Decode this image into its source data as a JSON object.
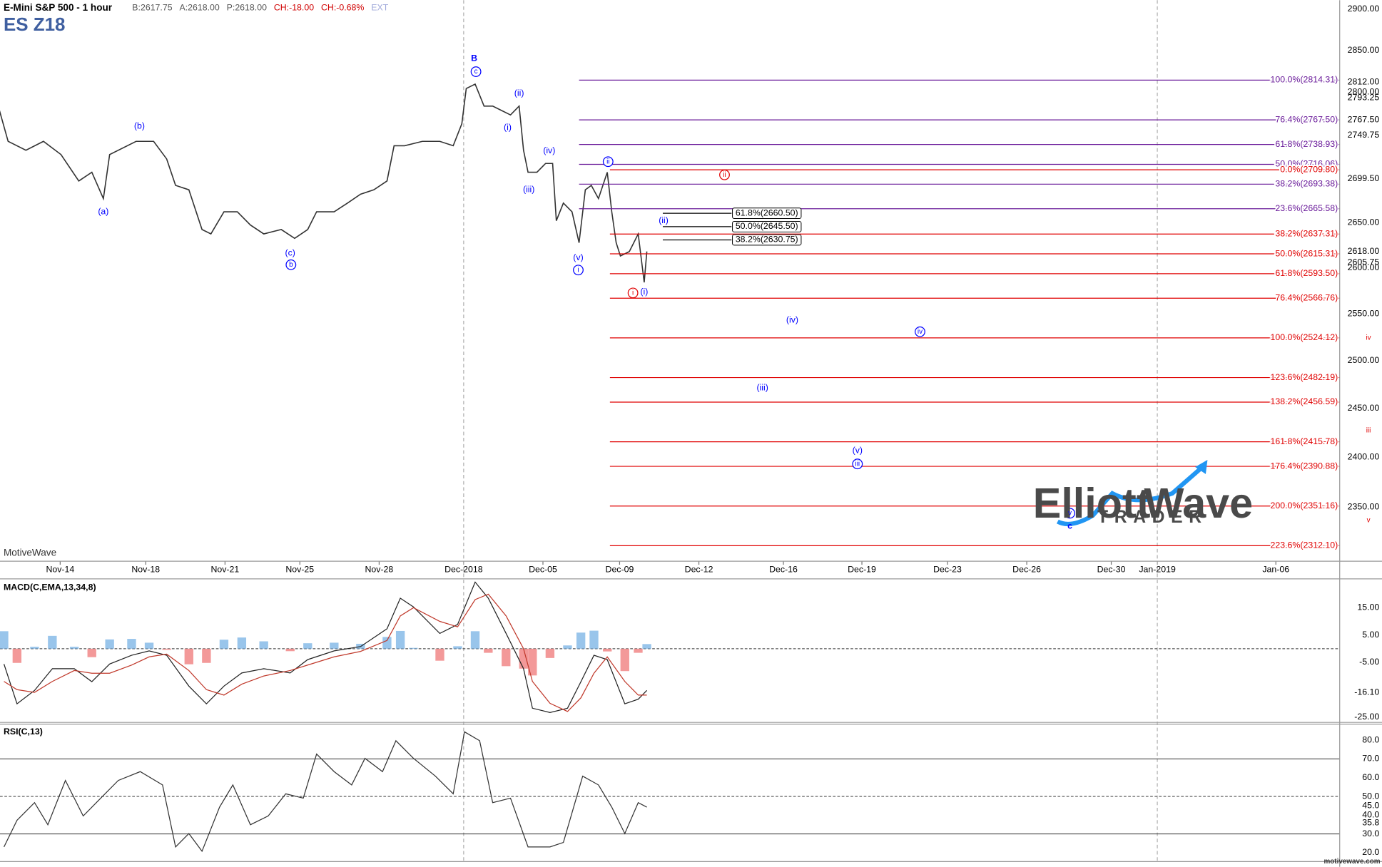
{
  "chart_data": [
    {
      "type": "line",
      "title": "E-Mini S&P 500 - 1 hour",
      "subtitle": "ES Z18",
      "quote": [
        {
          "text": "B:2617.75",
          "color": "#555555"
        },
        {
          "text": "A:2618.00",
          "color": "#555555"
        },
        {
          "text": "P:2618.00",
          "color": "#555555"
        },
        {
          "text": "CH:-18.00",
          "color": "#d00000"
        },
        {
          "text": "CH:-0.68%",
          "color": "#d00000"
        },
        {
          "text": "EXT",
          "color": "#9fa8da"
        }
      ],
      "watermark": "MotiveWave",
      "log_scale": true,
      "xlim": [
        -2.3,
        48.9
      ],
      "ylim": [
        2297,
        2911
      ],
      "xticks": [
        {
          "value": 0,
          "label": "Nov-14"
        },
        {
          "value": 3.27,
          "label": "Nov-18"
        },
        {
          "value": 6.3,
          "label": "Nov-21"
        },
        {
          "value": 9.16,
          "label": "Nov-25"
        },
        {
          "value": 12.19,
          "label": "Nov-28"
        },
        {
          "value": 15.42,
          "label": "Dec-2018"
        },
        {
          "value": 18.45,
          "label": "Dec-05"
        },
        {
          "value": 21.38,
          "label": "Dec-09"
        },
        {
          "value": 24.41,
          "label": "Dec-12"
        },
        {
          "value": 27.64,
          "label": "Dec-16"
        },
        {
          "value": 30.64,
          "label": "Dec-19"
        },
        {
          "value": 33.91,
          "label": "Dec-23"
        },
        {
          "value": 36.94,
          "label": "Dec-26"
        },
        {
          "value": 40.17,
          "label": "Dec-30"
        },
        {
          "value": 41.93,
          "label": "Jan-2019"
        },
        {
          "value": 46.46,
          "label": "Jan-06"
        }
      ],
      "yticks": [
        {
          "value": 2900,
          "label": "2900.00"
        },
        {
          "value": 2850,
          "label": "2850.00"
        },
        {
          "value": 2800,
          "label": "2800.00"
        },
        {
          "value": 2650,
          "label": "2650.00"
        },
        {
          "value": 2600,
          "label": "2600.00"
        },
        {
          "value": 2550,
          "label": "2550.00"
        },
        {
          "value": 2500,
          "label": "2500.00"
        },
        {
          "value": 2450,
          "label": "2450.00"
        },
        {
          "value": 2400,
          "label": "2400.00"
        },
        {
          "value": 2350,
          "label": "2350.00"
        }
      ],
      "series": [
        {
          "color": "#333333",
          "x": [
            -2.32,
            -1.99,
            -1.31,
            -0.64,
            0.03,
            0.71,
            1.21,
            1.65,
            1.89,
            2.9,
            3.57,
            4.07,
            4.41,
            4.92,
            5.42,
            5.76,
            6.26,
            6.77,
            7.27,
            7.78,
            8.45,
            8.96,
            9.46,
            9.8,
            10.47,
            10.98,
            11.48,
            11.99,
            12.49,
            12.76,
            13.16,
            13.84,
            14.51,
            15.02,
            15.35,
            15.52,
            15.86,
            16.2,
            16.53,
            16.87,
            17.21,
            17.54,
            17.71,
            17.88,
            18.22,
            18.55,
            18.82,
            18.96,
            19.23,
            19.56,
            19.83,
            20.07,
            20.3,
            20.57,
            20.91,
            21.08,
            21.25,
            21.41,
            21.75,
            22.09,
            22.32,
            22.42
          ],
          "values": [
            2778.5,
            2742.5,
            2732.3,
            2742.5,
            2727.3,
            2697.0,
            2707.0,
            2677.0,
            2727.3,
            2742.5,
            2742.5,
            2722.2,
            2692.0,
            2687.0,
            2642.3,
            2637.4,
            2662.1,
            2662.1,
            2647.3,
            2637.4,
            2642.3,
            2632.5,
            2642.3,
            2662.1,
            2662.1,
            2672.0,
            2682.0,
            2687.0,
            2697.0,
            2737.4,
            2737.4,
            2742.5,
            2742.5,
            2737.4,
            2763.0,
            2804.4,
            2809.6,
            2783.6,
            2783.6,
            2778.5,
            2773.3,
            2783.6,
            2732.3,
            2707.0,
            2707.0,
            2717.1,
            2717.1,
            2652.2,
            2672.0,
            2662.1,
            2627.6,
            2687.0,
            2692.0,
            2677.0,
            2707.0,
            2662.1,
            2627.6,
            2613.0,
            2617.8,
            2637.4,
            2584.0,
            2618.0
          ]
        }
      ],
      "fib_levels": [
        {
          "label": "100.0%(2814.31)",
          "value": 2814.31,
          "color": "#6a1b9a"
        },
        {
          "label": "76.4%(2767.50)",
          "value": 2767.5,
          "color": "#6a1b9a"
        },
        {
          "label": "61.8%(2738.93)",
          "value": 2738.93,
          "color": "#6a1b9a"
        },
        {
          "label": "50.0%(2716.06)",
          "value": 2716.06,
          "color": "#6a1b9a"
        },
        {
          "label": "38.2%(2693.38)",
          "value": 2693.38,
          "color": "#6a1b9a"
        },
        {
          "label": "23.6%(2665.58)",
          "value": 2665.58,
          "color": "#6a1b9a"
        },
        {
          "label": "0.0%(2709.80)",
          "value": 2709.8,
          "color": "#e00000"
        },
        {
          "label": "38.2%(2637.31)",
          "value": 2637.31,
          "color": "#e00000"
        },
        {
          "label": "50.0%(2615.31)",
          "value": 2615.31,
          "color": "#e00000"
        },
        {
          "label": "61.8%(2593.50)",
          "value": 2593.5,
          "color": "#e00000"
        },
        {
          "label": "76.4%(2566.76)",
          "value": 2566.76,
          "color": "#e00000"
        },
        {
          "label": "100.0%(2524.12)",
          "value": 2524.12,
          "color": "#e00000"
        },
        {
          "label": "123.6%(2482.19)",
          "value": 2482.19,
          "color": "#e00000"
        },
        {
          "label": "138.2%(2456.59)",
          "value": 2456.59,
          "color": "#e00000"
        },
        {
          "label": "161.8%(2415.78)",
          "value": 2415.78,
          "color": "#e00000"
        },
        {
          "label": "176.4%(2390.88)",
          "value": 2390.88,
          "color": "#e00000"
        },
        {
          "label": "200.0%(2351.16)",
          "value": 2351.16,
          "color": "#e00000"
        },
        {
          "label": "223.6%(2312.10)",
          "value": 2312.1,
          "color": "#e00000"
        },
        {
          "label": "61.8%(2660.50)",
          "value": 2660.5,
          "color": "#000000"
        },
        {
          "label": "50.0%(2645.50)",
          "value": 2645.5,
          "color": "#000000"
        },
        {
          "label": "38.2%(2630.75)",
          "value": 2630.75,
          "color": "#000000"
        }
      ],
      "price_markers": [
        {
          "value": 2812,
          "label": "2812.00",
          "color": "#4caf50"
        },
        {
          "value": 2793.25,
          "label": "2793.25",
          "color": "#ffffff"
        },
        {
          "value": 2767.5,
          "label": "2767.50",
          "color": "#f0625a"
        },
        {
          "value": 2749.75,
          "label": "2749.75",
          "color": "#7fb6e6"
        },
        {
          "value": 2699.5,
          "label": "2699.50",
          "color": "#ffffff"
        },
        {
          "value": 2618,
          "label": "2618.00",
          "color": "#ffffff"
        },
        {
          "value": 2605.75,
          "label": "2605.75",
          "color": "#ffffff"
        }
      ],
      "annotations": [
        {
          "text": "B",
          "x": 15.82,
          "y": 2840.2,
          "color": "#0000ff",
          "bold": true
        },
        {
          "text": "c",
          "x": 15.89,
          "y": 2824.4,
          "color": "#0000ff",
          "circled": true
        },
        {
          "text": "(b)",
          "x": 3.03,
          "y": 2760.1,
          "color": "#0000ff"
        },
        {
          "text": "(a)",
          "x": 1.65,
          "y": 2662.1,
          "color": "#0000ff"
        },
        {
          "text": "(c)",
          "x": 8.79,
          "y": 2615.9,
          "color": "#0000ff"
        },
        {
          "text": "b",
          "x": 8.82,
          "y": 2603.3,
          "color": "#0000ff",
          "circled": true
        },
        {
          "text": "(ii)",
          "x": 17.54,
          "y": 2798.2,
          "color": "#0000ff"
        },
        {
          "text": "(i)",
          "x": 17.1,
          "y": 2758.2,
          "color": "#0000ff"
        },
        {
          "text": "(iv)",
          "x": 18.69,
          "y": 2731.3,
          "color": "#0000ff"
        },
        {
          "text": "(iii)",
          "x": 17.91,
          "y": 2687.0,
          "color": "#0000ff"
        },
        {
          "text": "ii",
          "x": 20.94,
          "y": 2719.1,
          "color": "#0000ff",
          "circled": true
        },
        {
          "text": "(v)",
          "x": 19.8,
          "y": 2611.0,
          "color": "#0000ff"
        },
        {
          "text": "i",
          "x": 19.8,
          "y": 2597.5,
          "color": "#0000ff",
          "circled": true
        },
        {
          "text": "(ii)",
          "x": 23.06,
          "y": 2652.2,
          "color": "#0000ff"
        },
        {
          "text": "(i)",
          "x": 22.32,
          "y": 2573.4,
          "color": "#0000ff"
        },
        {
          "text": "ii",
          "x": 25.39,
          "y": 2704.0,
          "color": "#e00000",
          "circled": true
        },
        {
          "text": "i",
          "x": 21.89,
          "y": 2572.5,
          "color": "#e00000",
          "circled": true
        },
        {
          "text": "(iv)",
          "x": 27.98,
          "y": 2543.0,
          "color": "#0000ff"
        },
        {
          "text": "iv",
          "x": 32.86,
          "y": 2530.7,
          "color": "#0000ff",
          "circled": true
        },
        {
          "text": "(iii)",
          "x": 26.84,
          "y": 2471.1,
          "color": "#0000ff"
        },
        {
          "text": "(v)",
          "x": 30.47,
          "y": 2406.7,
          "color": "#0000ff"
        },
        {
          "text": "iii",
          "x": 30.47,
          "y": 2393.3,
          "color": "#0000ff",
          "circled": true
        },
        {
          "text": "iv",
          "x": 50.0,
          "y": 2524.1,
          "color": "#e00000",
          "circled": true
        },
        {
          "text": "iii",
          "x": 50.0,
          "y": 2427.3,
          "color": "#e00000",
          "circled": true
        },
        {
          "text": "v",
          "x": 50.0,
          "y": 2337.0,
          "color": "#e00000",
          "circled": true
        },
        {
          "text": "v",
          "x": 38.59,
          "y": 2344.0,
          "color": "#0000ff",
          "circled": true
        },
        {
          "text": "c",
          "x": 38.59,
          "y": 2331.0,
          "color": "#0000ff",
          "bold": true
        }
      ],
      "logo": {
        "word1": "Elliott",
        "word2": "Wave",
        "word3": "TRADER"
      }
    },
    {
      "type": "line",
      "title": "MACD(C,EMA,13,34,8)",
      "ylim": [
        -27,
        25.6
      ],
      "yticks": [
        {
          "value": 15,
          "label": "15.00"
        },
        {
          "value": 5,
          "label": "5.00"
        },
        {
          "value": -5,
          "label": "-5.00"
        },
        {
          "value": -25,
          "label": "-25.00"
        }
      ],
      "levels": [
        0
      ],
      "x": [
        -2.15,
        -1.65,
        -0.98,
        -0.3,
        0.54,
        1.21,
        1.89,
        2.73,
        3.4,
        4.07,
        4.92,
        5.59,
        6.26,
        6.94,
        7.78,
        8.79,
        9.46,
        10.47,
        11.48,
        12.49,
        13.0,
        13.5,
        14.51,
        15.19,
        15.86,
        16.36,
        17.04,
        17.71,
        18.05,
        18.72,
        19.39,
        19.9,
        20.4,
        20.91,
        21.58,
        22.09,
        22.42
      ],
      "series": [
        {
          "color": "#222222",
          "values": [
            -5.6,
            -20.2,
            -15.3,
            -7.3,
            -7.3,
            -12.1,
            -5.6,
            -2.4,
            -0.8,
            -2.4,
            -13.7,
            -20.2,
            -13.7,
            -8.9,
            -7.3,
            -8.9,
            -4.0,
            -0.8,
            0.8,
            7.3,
            18.5,
            15.3,
            5.6,
            8.9,
            24.4,
            18.5,
            5.6,
            -7.3,
            -21.8,
            -23.4,
            -21.8,
            -12.1,
            -2.4,
            -4.0,
            -20.2,
            -18.5,
            -15.3
          ]
        },
        {
          "color": "#c0392b",
          "values": [
            -12,
            -15,
            -16,
            -12,
            -8,
            -9,
            -9,
            -6,
            -3,
            -2,
            -8,
            -15,
            -17,
            -13,
            -10,
            -8,
            -6,
            -3,
            -1,
            3,
            12,
            15,
            10,
            8,
            18,
            20,
            12,
            0,
            -12,
            -20,
            -23,
            -18,
            -9,
            -3,
            -12,
            -17,
            -17
          ]
        }
      ],
      "histogram": {
        "colors": [
          "#7fb6e6",
          "#f08080"
        ],
        "values": [
          6.4,
          -5.2,
          0.7,
          4.7,
          0.7,
          -3.1,
          3.4,
          3.6,
          2.2,
          -0.4,
          -5.7,
          -5.2,
          3.3,
          4.1,
          2.7,
          -0.9,
          2,
          2.2,
          1.8,
          4.3,
          6.5,
          0.3,
          -4.4,
          0.9,
          6.4,
          -1.5,
          -6.4,
          -7.3,
          -9.8,
          -3.4,
          1.2,
          5.9,
          6.6,
          -1,
          -8.2,
          -1.5,
          1.7
        ]
      },
      "markers": [
        {
          "value": -16.1,
          "label": "-16.10",
          "color": "#f0625a"
        }
      ]
    },
    {
      "type": "line",
      "title": "RSI(C,13)",
      "ylim": [
        15.3,
        88.5
      ],
      "yticks": [
        {
          "value": 80,
          "label": "80.0"
        },
        {
          "value": 70,
          "label": "70.0"
        },
        {
          "value": 60,
          "label": "60.0"
        },
        {
          "value": 50,
          "label": "50.0"
        },
        {
          "value": 40,
          "label": "40.0"
        },
        {
          "value": 30,
          "label": "30.0"
        },
        {
          "value": 20,
          "label": "20.0"
        }
      ],
      "levels": [
        70,
        50,
        30
      ],
      "x": [
        -2.15,
        -1.65,
        -0.98,
        -0.47,
        0.2,
        0.88,
        1.55,
        2.22,
        3.06,
        3.91,
        4.41,
        4.92,
        5.42,
        6.09,
        6.6,
        7.27,
        7.95,
        8.62,
        9.29,
        9.8,
        10.47,
        11.14,
        11.65,
        12.32,
        12.83,
        13.5,
        14.34,
        15.02,
        15.45,
        16.03,
        16.53,
        17.21,
        17.88,
        18.72,
        19.23,
        19.97,
        20.57,
        21.08,
        21.58,
        22.09,
        22.42
      ],
      "series": [
        {
          "color": "#333333",
          "values": [
            23.1,
            37.3,
            46.7,
            34.9,
            58.5,
            39.6,
            49.1,
            58.5,
            63.2,
            56.1,
            23.1,
            30.2,
            20.8,
            44.3,
            56.1,
            34.9,
            39.6,
            51.4,
            49.1,
            72.6,
            63.2,
            56.1,
            70.3,
            63.2,
            79.7,
            70.3,
            60.8,
            51.4,
            84.4,
            79.7,
            46.7,
            49.1,
            23.1,
            23.1,
            25.5,
            60.8,
            56.1,
            44.3,
            30.2,
            46.7,
            44.3
          ]
        }
      ],
      "markers": [
        {
          "value": 45,
          "label": "45.0",
          "color": "#f0625a"
        },
        {
          "value": 35.8,
          "label": "35.8",
          "color": "#7fb6e6"
        }
      ],
      "footer": "motivewave.com"
    }
  ]
}
